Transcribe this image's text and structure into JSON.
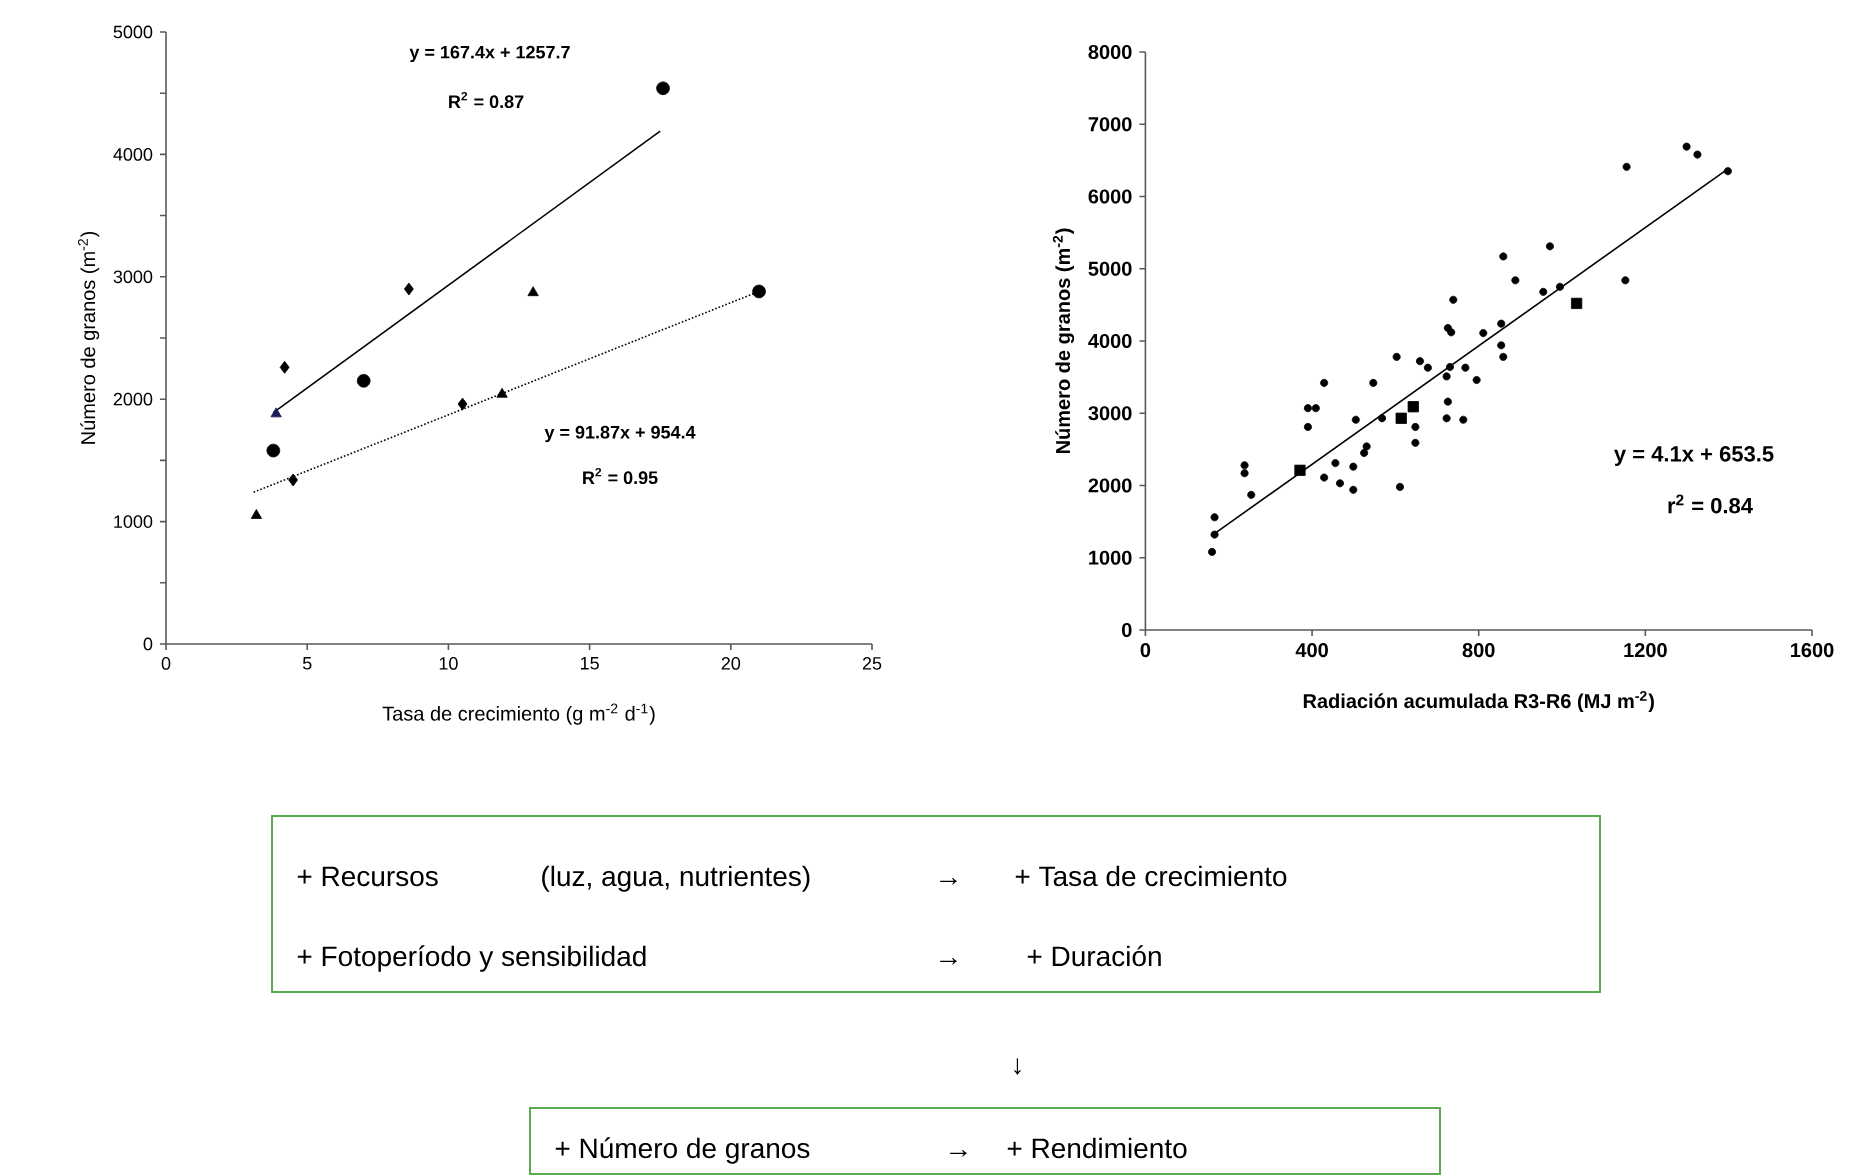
{
  "chart_data": [
    {
      "type": "scatter",
      "xlabel": "Tasa de crecimiento (g m$^{-2}$ d$^{-1}$)",
      "ylabel": "Número de granos (m$^{-2}$)",
      "xlim": [
        0,
        25
      ],
      "xticks": [
        0,
        5,
        10,
        15,
        20,
        25
      ],
      "ylim": [
        0,
        5000
      ],
      "yticks": [
        0,
        {
          "value": 500,
          "label": null
        },
        1000,
        {
          "value": 1500,
          "label": null
        },
        2000,
        {
          "value": 2500,
          "label": null
        },
        3000,
        {
          "value": 3500,
          "label": null
        },
        4000,
        {
          "value": 4500,
          "label": null
        },
        5000
      ],
      "series": [
        {
          "color": "#000000",
          "marker": "diamond",
          "x": [
            4.2,
            8.6
          ],
          "values": [
            2260,
            2900
          ]
        },
        {
          "color": "#000000",
          "marker": "circle",
          "x": [
            7.0,
            17.6
          ],
          "values": [
            2150,
            4540
          ]
        },
        {
          "color": "#000000",
          "marker": "triangle",
          "x": [
            13.0
          ],
          "values": [
            2870
          ]
        },
        {
          "color": "#1c1c5c",
          "marker": "triangle",
          "x": [
            3.9
          ],
          "values": [
            1880
          ]
        },
        {
          "color": "#000000",
          "marker": "circle",
          "x": [
            3.8,
            21.0
          ],
          "values": [
            1580,
            2880
          ]
        },
        {
          "color": "#000000",
          "marker": "triangle",
          "x": [
            3.2,
            11.9
          ],
          "values": [
            1050,
            2040
          ]
        },
        {
          "color": "#000000",
          "marker": "diamond",
          "x": [
            4.5,
            10.5
          ],
          "values": [
            1340,
            1960
          ]
        },
        {
          "type": "line",
          "color": "#000000",
          "line_style": "solid",
          "x": [
            3.8,
            17.5
          ],
          "values": [
            1890,
            4190
          ]
        },
        {
          "type": "line",
          "color": "#000000",
          "line_style": "dotted",
          "x": [
            3.1,
            21.0
          ],
          "values": [
            1240,
            2880
          ]
        }
      ],
      "annotations": [
        "y = 167.4x + 1257.7",
        "R$^{2}$ = 0.87",
        "y = 91.87x + 954.4",
        "R$^{2}$ = 0.95"
      ]
    },
    {
      "type": "scatter",
      "xlabel": "Radiación acumulada R3-R6 (MJ m$^{-2}$)",
      "ylabel": "Número de granos (m$^{-2}$)",
      "xlim": [
        0,
        1600
      ],
      "xticks": [
        0,
        400,
        800,
        1200,
        1600
      ],
      "ylim": [
        0,
        8000
      ],
      "yticks": [
        0,
        1000,
        2000,
        3000,
        4000,
        5000,
        6000,
        7000,
        8000
      ],
      "series": [
        {
          "color": "#000000",
          "marker": "circle",
          "x": [
            160,
            166,
            166,
            238,
            238,
            254,
            390,
            409,
            390,
            429,
            429,
            456,
            467,
            499,
            499,
            505,
            531,
            525,
            547,
            568,
            603,
            611,
            648,
            648,
            659,
            678,
            723,
            731,
            734,
            726,
            739,
            726,
            723,
            763,
            768,
            795,
            811,
            854,
            854,
            859,
            859,
            888,
            971,
            955,
            995,
            1155,
            1152,
            1299,
            1325,
            1398
          ],
          "values": [
            1080,
            1560,
            1320,
            2280,
            2170,
            1870,
            3070,
            3070,
            2810,
            3420,
            2110,
            2310,
            2030,
            2260,
            1940,
            2910,
            2540,
            2450,
            3420,
            2930,
            3780,
            1980,
            2810,
            2590,
            3720,
            3630,
            3510,
            3640,
            4120,
            4180,
            4570,
            3160,
            2930,
            2910,
            3630,
            3460,
            4110,
            4240,
            3940,
            3780,
            5170,
            4840,
            5310,
            4680,
            4750,
            6410,
            4840,
            6690,
            6580,
            6350
          ]
        },
        {
          "color": "#000000",
          "marker": "square",
          "x": [
            614,
            1035
          ],
          "values": [
            2930,
            4520
          ]
        },
        {
          "color": "#000000",
          "marker": "square",
          "x": [
            371,
            643
          ],
          "values": [
            2210,
            3090
          ]
        },
        {
          "type": "line",
          "color": "#000000",
          "line_style": "solid",
          "x": [
            160,
            1400
          ],
          "values": [
            1310,
            6390
          ]
        }
      ],
      "annotations": [
        "y = 4.1x + 653.5",
        "r$^{2}$ = 0.84"
      ]
    },
    {
      "type": "other",
      "annotations": [
        "+ Recursos",
        "(luz, agua, nutrientes)",
        "→",
        "+ Tasa de crecimiento",
        "+ Fotoperíodo y sensibilidad",
        "→",
        "+ Duración",
        "↓",
        "+ Número de granos",
        "→",
        "+ Rendimiento"
      ]
    }
  ]
}
